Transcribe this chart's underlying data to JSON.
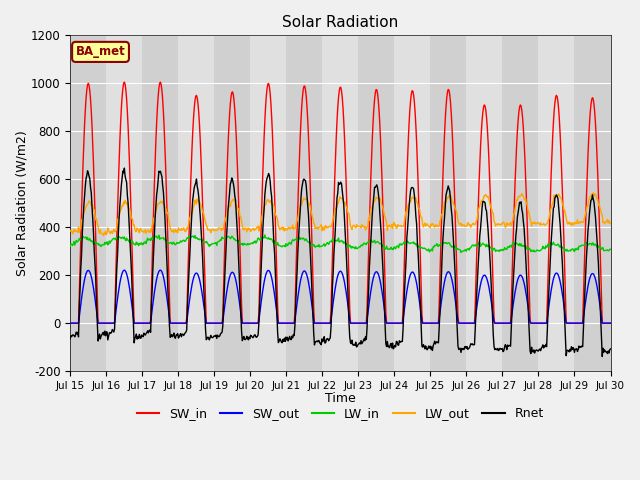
{
  "title": "Solar Radiation",
  "xlabel": "Time",
  "ylabel": "Solar Radiation (W/m2)",
  "ylim": [
    -200,
    1200
  ],
  "yticks": [
    -200,
    0,
    200,
    400,
    600,
    800,
    1000,
    1200
  ],
  "start_day": 15,
  "end_day": 30,
  "n_days": 15,
  "dt_hours": 0.5,
  "colors": {
    "SW_in": "#ff0000",
    "SW_out": "#0000ff",
    "LW_in": "#00cc00",
    "LW_out": "#ffa500",
    "Rnet": "#000000"
  },
  "site_label": "BA_met",
  "site_label_facecolor": "#ffff99",
  "site_label_edgecolor": "#8b0000",
  "bg_color": "#f0f0f0",
  "plot_bg_color": "#e0e0e0",
  "grid_color": "#ffffff"
}
